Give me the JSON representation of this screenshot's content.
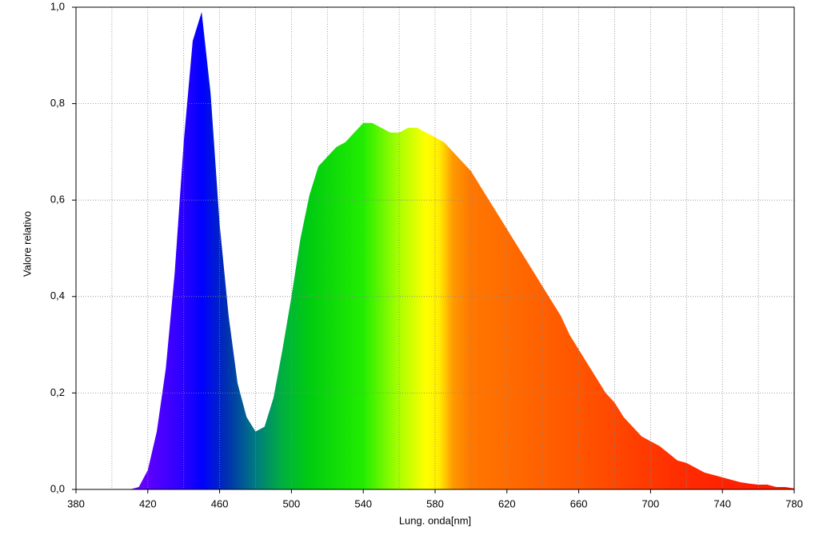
{
  "chart_data": {
    "type": "area",
    "x_label": "Lung. onda[nm]",
    "y_label": "Valore relativo",
    "x": [
      380,
      385,
      390,
      395,
      400,
      405,
      410,
      415,
      420,
      425,
      430,
      435,
      440,
      445,
      450,
      455,
      460,
      465,
      470,
      475,
      480,
      485,
      490,
      495,
      500,
      505,
      510,
      515,
      520,
      525,
      530,
      535,
      540,
      545,
      550,
      555,
      560,
      565,
      570,
      575,
      580,
      585,
      590,
      595,
      600,
      605,
      610,
      615,
      620,
      625,
      630,
      635,
      640,
      645,
      650,
      655,
      660,
      665,
      670,
      675,
      680,
      685,
      690,
      695,
      700,
      705,
      710,
      715,
      720,
      725,
      730,
      735,
      740,
      745,
      750,
      755,
      760,
      765,
      770,
      775,
      780
    ],
    "series": [
      {
        "values": [
          0,
          0,
          0,
          0,
          0,
          0,
          0,
          0.005,
          0.04,
          0.12,
          0.25,
          0.45,
          0.72,
          0.93,
          0.99,
          0.82,
          0.55,
          0.36,
          0.22,
          0.15,
          0.12,
          0.13,
          0.19,
          0.29,
          0.4,
          0.52,
          0.61,
          0.67,
          0.69,
          0.71,
          0.72,
          0.74,
          0.76,
          0.76,
          0.75,
          0.74,
          0.74,
          0.75,
          0.75,
          0.74,
          0.73,
          0.72,
          0.7,
          0.68,
          0.66,
          0.63,
          0.6,
          0.57,
          0.54,
          0.51,
          0.48,
          0.45,
          0.42,
          0.39,
          0.36,
          0.32,
          0.29,
          0.26,
          0.23,
          0.2,
          0.18,
          0.15,
          0.13,
          0.11,
          0.1,
          0.09,
          0.075,
          0.06,
          0.055,
          0.045,
          0.035,
          0.03,
          0.025,
          0.02,
          0.015,
          0.012,
          0.01,
          0.01,
          0.005,
          0.005,
          0.002
        ]
      }
    ],
    "xlim": [
      380,
      780
    ],
    "ylim": [
      0,
      1
    ],
    "xticks": [
      380,
      420,
      460,
      500,
      540,
      580,
      620,
      660,
      700,
      740,
      780
    ],
    "xgrid": [
      400,
      420,
      440,
      460,
      480,
      500,
      520,
      540,
      560,
      580,
      600,
      620,
      640,
      660,
      680,
      700,
      720,
      740,
      760
    ],
    "yticks": [
      {
        "value": 0,
        "label": "0,0"
      },
      {
        "value": 0.2,
        "label": "0,2"
      },
      {
        "value": 0.4,
        "label": "0,4"
      },
      {
        "value": 0.6,
        "label": "0,6"
      },
      {
        "value": 0.8,
        "label": "0,8"
      },
      {
        "value": 1,
        "label": "1,0"
      }
    ],
    "grid": true
  }
}
